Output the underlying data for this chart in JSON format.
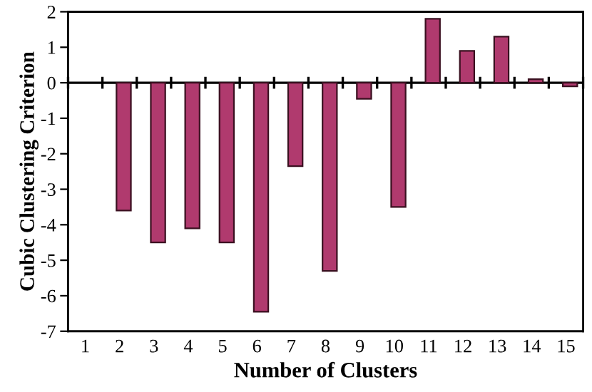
{
  "chart_data": {
    "type": "bar",
    "xlabel": "Number of Clusters",
    "ylabel": "Cubic Clustering Criterion",
    "categories": [
      "1",
      "2",
      "3",
      "4",
      "5",
      "6",
      "7",
      "8",
      "9",
      "10",
      "11",
      "12",
      "13",
      "14",
      "15"
    ],
    "values": [
      null,
      -3.6,
      -4.5,
      -4.1,
      -4.5,
      -6.45,
      -2.35,
      -5.3,
      -0.45,
      -3.5,
      1.8,
      0.9,
      1.3,
      0.1,
      -0.1
    ],
    "color": "#b03a6e",
    "ylim": [
      -7,
      2
    ],
    "yticks": [
      -7,
      -6,
      -5,
      -4,
      -3,
      -2,
      -1,
      0,
      1,
      2
    ],
    "grid": false,
    "ref_lines": [
      {
        "axis": "y",
        "value": 0,
        "color": "#000000"
      }
    ],
    "legend": false
  }
}
